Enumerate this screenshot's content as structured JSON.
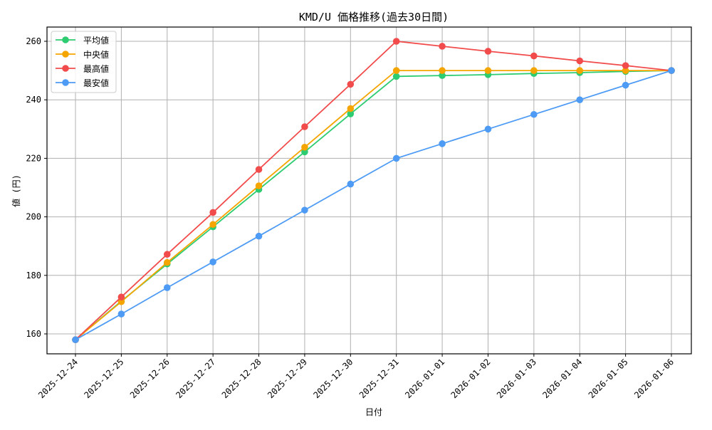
{
  "chart_data": {
    "type": "line",
    "title": "KMD/U 価格推移(過去30日間)",
    "xlabel": "日付",
    "ylabel": "値 (円)",
    "ylim": [
      153,
      265
    ],
    "yticks": [
      160,
      180,
      200,
      220,
      240,
      260
    ],
    "grid": true,
    "legend_position": "upper left",
    "categories": [
      "2025-12-24",
      "2025-12-25",
      "2025-12-26",
      "2025-12-27",
      "2025-12-28",
      "2025-12-29",
      "2025-12-30",
      "2025-12-31",
      "2026-01-01",
      "2026-01-02",
      "2026-01-03",
      "2026-01-04",
      "2026-01-05",
      "2026-01-06"
    ],
    "series": [
      {
        "name": "平均値",
        "color": "#2ecc71",
        "values": [
          158,
          171.2,
          183.9,
          196.6,
          209.4,
          222.2,
          235.2,
          248,
          248.3,
          248.6,
          249,
          249.3,
          249.7,
          250
        ]
      },
      {
        "name": "中央値",
        "color": "#f5a500",
        "values": [
          158,
          171,
          184.4,
          197.4,
          210.6,
          223.8,
          237,
          250,
          250,
          250,
          250,
          250,
          250,
          250
        ]
      },
      {
        "name": "最高値",
        "color": "#f24b4b",
        "values": [
          158,
          172.6,
          187.2,
          201.5,
          216.2,
          230.8,
          245.3,
          260,
          258.3,
          256.6,
          255,
          253.3,
          251.7,
          250
        ]
      },
      {
        "name": "最安値",
        "color": "#4d9bf5",
        "values": [
          158,
          166.8,
          175.8,
          184.6,
          193.4,
          202.3,
          211.2,
          220,
          225,
          230,
          235,
          240,
          245,
          250
        ]
      }
    ]
  }
}
